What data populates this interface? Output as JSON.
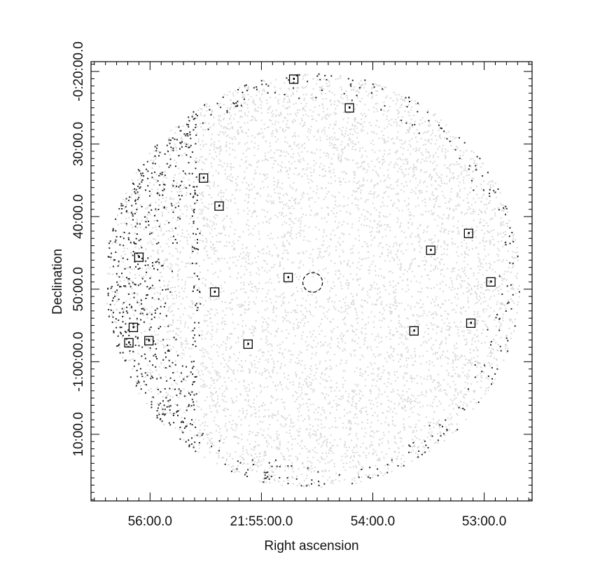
{
  "chart_data": {
    "type": "sky-image",
    "x_label": "Right ascension",
    "y_label": "Declination",
    "xlim": [
      56.53,
      52.57
    ],
    "ylim": [
      -79.18,
      -18.65
    ],
    "xticks": [
      {
        "value": 56,
        "label": "56:00.0"
      },
      {
        "value": 55,
        "label": "21:55:00.0"
      },
      {
        "value": 54,
        "label": "54:00.0"
      },
      {
        "value": 53,
        "label": "53:00.0"
      }
    ],
    "yticks": [
      {
        "value": -20,
        "label": "-0:20:00.0"
      },
      {
        "value": -30,
        "label": "30:00.0"
      },
      {
        "value": -40,
        "label": "40:00.0"
      },
      {
        "value": -50,
        "label": "50:00.0"
      },
      {
        "value": -60,
        "label": "-1:00:00.0"
      },
      {
        "value": -70,
        "label": "10:00.0"
      }
    ],
    "sources": {
      "x": [
        54.71,
        54.21,
        55.52,
        55.38,
        53.14,
        53.48,
        56.1,
        54.76,
        52.94,
        55.42,
        56.15,
        53.12,
        53.63,
        56.01,
        56.19,
        55.12
      ],
      "y": [
        -21.06,
        -25.02,
        -34.69,
        -38.55,
        -42.32,
        -44.64,
        -45.6,
        -48.4,
        -49.0,
        -50.4,
        -55.27,
        -54.69,
        -55.75,
        -57.1,
        -57.39,
        -57.58
      ]
    },
    "target": {
      "x": 54.54,
      "y": -49.08
    }
  }
}
